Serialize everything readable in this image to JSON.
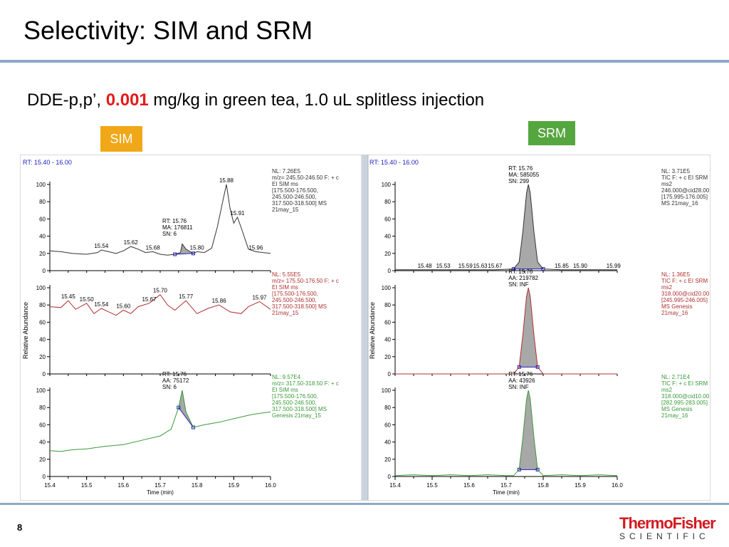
{
  "title": "Selectivity: SIM and SRM",
  "subtitle": {
    "pre": "DDE-p,p’, ",
    "highlight": "0.001",
    "post": " mg/kg in green tea, 1.0 uL splitless injection"
  },
  "badges": {
    "sim": "SIM",
    "srm": "SRM"
  },
  "footer": {
    "page_number": "8",
    "logo_top": "ThermoFisher",
    "logo_bottom": "SCIENTIFIC"
  },
  "colors": {
    "sim_badge": "#f0a818",
    "srm_badge": "#56a63f",
    "trace1": "#333333",
    "trace2": "#b03030",
    "trace3": "#3a9a3a",
    "rt_label": "#2020c0"
  },
  "chart_data": [
    {
      "type": "line",
      "panel": "SIM",
      "rt_label": "RT: 15.40 - 16.00",
      "xlabel": "Time (min)",
      "ylabel": "Relative Abundance",
      "xlim": [
        15.4,
        16.0
      ],
      "ylim": [
        0,
        100
      ],
      "x_ticks": [
        "15.4",
        "15.5",
        "15.6",
        "15.7",
        "15.8",
        "15.9",
        "16.0"
      ],
      "y_ticks": [
        "0",
        "20",
        "40",
        "60",
        "80",
        "100"
      ],
      "traces": [
        {
          "color": "#333333",
          "info": [
            "NL: 7.26E5",
            "m/z= 245.50-246.50 F: + c",
            "EI SIM ms",
            "[175.500-176.500,",
            "245.500-246.500,",
            "317.500-318.500] MS",
            "21may_15"
          ],
          "x": [
            15.4,
            15.43,
            15.46,
            15.5,
            15.53,
            15.54,
            15.56,
            15.58,
            15.6,
            15.62,
            15.64,
            15.66,
            15.68,
            15.7,
            15.72,
            15.74,
            15.755,
            15.76,
            15.77,
            15.79,
            15.8,
            15.82,
            15.84,
            15.855,
            15.87,
            15.88,
            15.89,
            15.9,
            15.91,
            15.92,
            15.94,
            15.96,
            15.98,
            16.0
          ],
          "y": [
            23,
            22,
            20,
            19,
            21,
            24,
            22,
            20,
            23,
            28,
            25,
            21,
            22,
            19,
            18,
            19,
            21,
            31,
            25,
            20,
            22,
            21,
            26,
            50,
            80,
            100,
            72,
            55,
            62,
            50,
            25,
            22,
            21,
            20
          ],
          "labels": [
            {
              "x": 15.54,
              "y": 24,
              "text": "15.54"
            },
            {
              "x": 15.62,
              "y": 28,
              "text": "15.62"
            },
            {
              "x": 15.68,
              "y": 22,
              "text": "15.68"
            },
            {
              "x": 15.8,
              "y": 22,
              "text": "15.80"
            },
            {
              "x": 15.88,
              "y": 100,
              "text": "15.88"
            },
            {
              "x": 15.91,
              "y": 62,
              "text": "15.91"
            },
            {
              "x": 15.96,
              "y": 22,
              "text": "15.96"
            }
          ],
          "peak": {
            "start": 15.74,
            "end": 15.79,
            "apex": 15.76,
            "lines": [
              "RT: 15.76",
              "MA: 176811",
              "SN: 6"
            ]
          }
        },
        {
          "color": "#b03030",
          "info": [
            "NL: 5.55E5",
            "m/z= 175.50-176.50 F: + c",
            "EI SIM ms",
            "[175.500-176.500,",
            "245.500-246.500,",
            "317.500-318.500] MS",
            "21may_15"
          ],
          "x": [
            15.4,
            15.43,
            15.45,
            15.47,
            15.5,
            15.52,
            15.54,
            15.56,
            15.58,
            15.6,
            15.62,
            15.64,
            15.67,
            15.7,
            15.72,
            15.74,
            15.77,
            15.8,
            15.83,
            15.86,
            15.89,
            15.92,
            15.94,
            15.97,
            16.0
          ],
          "y": [
            78,
            77,
            85,
            75,
            82,
            70,
            76,
            72,
            68,
            74,
            70,
            78,
            82,
            92,
            80,
            74,
            85,
            70,
            76,
            80,
            72,
            70,
            78,
            84,
            75
          ],
          "labels": [
            {
              "x": 15.45,
              "y": 85,
              "text": "15.45"
            },
            {
              "x": 15.5,
              "y": 82,
              "text": "15.50"
            },
            {
              "x": 15.54,
              "y": 76,
              "text": "15.54"
            },
            {
              "x": 15.6,
              "y": 74,
              "text": "15.60"
            },
            {
              "x": 15.67,
              "y": 82,
              "text": "15.67"
            },
            {
              "x": 15.7,
              "y": 92,
              "text": "15.70"
            },
            {
              "x": 15.77,
              "y": 85,
              "text": "15.77"
            },
            {
              "x": 15.86,
              "y": 80,
              "text": "15.86"
            },
            {
              "x": 15.97,
              "y": 84,
              "text": "15.97"
            }
          ]
        },
        {
          "color": "#3a9a3a",
          "info": [
            "NL: 9.57E4",
            "m/z= 317.50-318.50 F: + c",
            "EI SIM ms",
            "[175.500-176.500,",
            "245.500-246.500,",
            "317.500-318.500] MS",
            "Genesis 21may_15"
          ],
          "x": [
            15.4,
            15.43,
            15.46,
            15.5,
            15.55,
            15.6,
            15.65,
            15.7,
            15.73,
            15.75,
            15.76,
            15.77,
            15.79,
            15.82,
            15.86,
            15.9,
            15.95,
            16.0
          ],
          "y": [
            30,
            29,
            31,
            32,
            35,
            37,
            42,
            47,
            55,
            80,
            100,
            75,
            57,
            60,
            63,
            67,
            72,
            75
          ],
          "labels": [],
          "peak": {
            "start": 15.735,
            "end": 15.79,
            "apex": 15.76,
            "lines": [
              "RT: 15.76",
              "AA: 75172",
              "SN: 6"
            ]
          }
        }
      ]
    },
    {
      "type": "line",
      "panel": "SRM",
      "rt_label": "RT: 15.40 - 16.00",
      "xlabel": "Time (min)",
      "ylabel": "Relative Abundance",
      "xlim": [
        15.4,
        16.0
      ],
      "ylim": [
        0,
        100
      ],
      "x_ticks": [
        "15.4",
        "15.5",
        "15.6",
        "15.7",
        "15.8",
        "15.9",
        "16.0"
      ],
      "y_ticks": [
        "0",
        "20",
        "40",
        "60",
        "80",
        "100"
      ],
      "traces": [
        {
          "color": "#333333",
          "info": [
            "NL: 3.71E5",
            "TIC F: + c EI SRM",
            "ms2",
            "246.000@cid28.00",
            "[175.995-176.005]",
            "MS 21may_16"
          ],
          "x": [
            15.4,
            15.48,
            15.53,
            15.59,
            15.63,
            15.67,
            15.72,
            15.735,
            15.745,
            15.755,
            15.76,
            15.765,
            15.775,
            15.785,
            15.8,
            15.85,
            15.9,
            15.99,
            16.0
          ],
          "y": [
            1,
            1,
            1,
            1,
            1,
            1,
            2,
            10,
            45,
            90,
            100,
            90,
            45,
            10,
            2,
            1,
            1,
            1,
            1
          ],
          "labels": [
            {
              "x": 15.48,
              "y": 1,
              "text": "15.48"
            },
            {
              "x": 15.53,
              "y": 1,
              "text": "15.53"
            },
            {
              "x": 15.59,
              "y": 1,
              "text": "15.59"
            },
            {
              "x": 15.63,
              "y": 1,
              "text": "15.63"
            },
            {
              "x": 15.67,
              "y": 1,
              "text": "15.67"
            },
            {
              "x": 15.85,
              "y": 1,
              "text": "15.85"
            },
            {
              "x": 15.9,
              "y": 1,
              "text": "15.90"
            },
            {
              "x": 15.99,
              "y": 1,
              "text": "15.99"
            }
          ],
          "peak": {
            "start": 15.72,
            "end": 15.8,
            "apex": 15.76,
            "lines": [
              "RT: 15.76",
              "MA: 585055",
              "SN: 299"
            ]
          }
        },
        {
          "color": "#b03030",
          "info": [
            "NL: 1.36E5",
            "TIC F: + c EI SRM",
            "ms2",
            "318.000@cid20.00",
            "[245.995-246.005]",
            "MS Genesis",
            "21may_16"
          ],
          "x": [
            15.4,
            15.72,
            15.735,
            15.745,
            15.755,
            15.76,
            15.765,
            15.775,
            15.785,
            15.8,
            16.0
          ],
          "y": [
            0,
            0,
            8,
            45,
            90,
            100,
            90,
            45,
            8,
            0,
            0
          ],
          "labels": [],
          "peak": {
            "start": 15.73,
            "end": 15.79,
            "apex": 15.76,
            "lines": [
              "RT: 15.76",
              "AA: 219782",
              "SN: INF"
            ]
          }
        },
        {
          "color": "#3a9a3a",
          "info": [
            "NL: 2.71E4",
            "TIC F: + c EI SRM",
            "ms2",
            "318.000@cid10.00",
            "[282.995-283.005]",
            "MS Genesis",
            "21may_16"
          ],
          "x": [
            15.4,
            15.45,
            15.5,
            15.55,
            15.6,
            15.65,
            15.7,
            15.72,
            15.735,
            15.745,
            15.755,
            15.76,
            15.765,
            15.775,
            15.785,
            15.8,
            15.85,
            15.9,
            15.95,
            16.0
          ],
          "y": [
            1,
            2,
            1,
            2,
            1,
            2,
            1,
            1,
            8,
            45,
            90,
            100,
            90,
            45,
            8,
            1,
            2,
            1,
            2,
            1
          ],
          "labels": [],
          "peak": {
            "start": 15.73,
            "end": 15.79,
            "apex": 15.76,
            "lines": [
              "RT: 15.76",
              "AA: 43926",
              "SN: INF"
            ]
          }
        }
      ]
    }
  ]
}
